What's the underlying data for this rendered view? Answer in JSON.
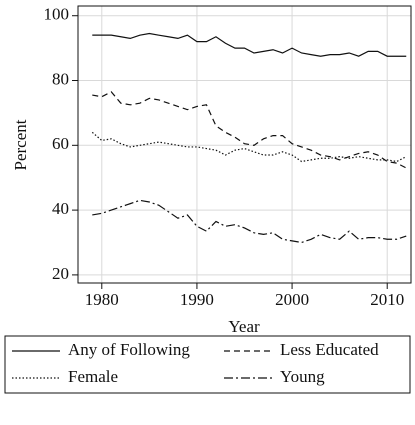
{
  "chart_data": {
    "type": "line",
    "x_label": "Year",
    "y_label": "Percent",
    "x": [
      1979,
      1980,
      1981,
      1982,
      1983,
      1984,
      1985,
      1986,
      1987,
      1988,
      1989,
      1990,
      1991,
      1992,
      1993,
      1994,
      1995,
      1996,
      1997,
      1998,
      1999,
      2000,
      2001,
      2002,
      2003,
      2004,
      2005,
      2006,
      2007,
      2008,
      2009,
      2010,
      2011,
      2012
    ],
    "xlim": [
      1977.5,
      2012.5
    ],
    "xticks": [
      1980,
      1990,
      2000,
      2010
    ],
    "ylim": [
      17.5,
      103
    ],
    "yticks": [
      20,
      40,
      60,
      80,
      100
    ],
    "grid": true,
    "legend_position": "bottom",
    "series": [
      {
        "name": "Any of Following",
        "color": "#111111",
        "linestyle": "solid",
        "values": [
          94,
          94,
          94,
          93.5,
          93,
          94,
          94.5,
          94,
          93.5,
          93,
          94,
          92,
          92,
          93.5,
          91.5,
          90,
          90,
          88.5,
          89,
          89.5,
          88.5,
          90,
          88.5,
          88,
          87.5,
          88,
          88,
          88.5,
          87.5,
          89,
          89,
          87.5,
          87.5,
          87.5
        ]
      },
      {
        "name": "Less Educated",
        "color": "#111111",
        "linestyle": "dashed",
        "values": [
          75.5,
          75,
          76.5,
          73,
          72.5,
          73,
          74.5,
          74,
          73,
          72,
          71,
          72,
          72.5,
          66,
          64,
          62.5,
          60.5,
          60,
          62,
          63,
          63,
          60.5,
          59.5,
          58.5,
          57,
          56.5,
          55.5,
          56.5,
          57.5,
          58,
          57,
          55,
          54.5,
          53
        ]
      },
      {
        "name": "Female",
        "color": "#111111",
        "linestyle": "dotted",
        "values": [
          64,
          61.5,
          62,
          60.5,
          59.5,
          60,
          60.5,
          61,
          60.5,
          60,
          59.5,
          59.5,
          59,
          58.5,
          57,
          58.5,
          59,
          58,
          57,
          57,
          58,
          57,
          55,
          55.5,
          56,
          56,
          56.5,
          56,
          56.5,
          56,
          55.5,
          55.5,
          55,
          56.5
        ]
      },
      {
        "name": "Young",
        "color": "#111111",
        "linestyle": "dashdot",
        "values": [
          38.5,
          39,
          40,
          41,
          42,
          43,
          42.5,
          41.5,
          39.5,
          37.5,
          38.5,
          35,
          33.5,
          36.5,
          35,
          35.5,
          34.5,
          33,
          32.5,
          33,
          31,
          30.5,
          30,
          31,
          32.5,
          31.5,
          31,
          33.5,
          31,
          31.5,
          31.5,
          31,
          31,
          32
        ]
      }
    ]
  }
}
